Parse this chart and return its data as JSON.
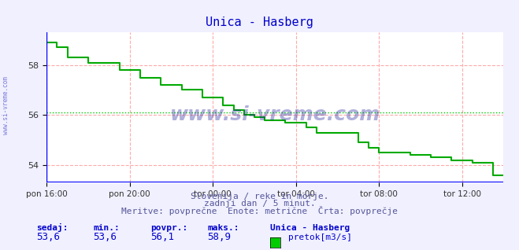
{
  "title": "Unica - Hasberg",
  "title_color": "#0000cc",
  "bg_color": "#f0f0ff",
  "plot_bg_color": "#ffffff",
  "ylabel": "",
  "xlabel": "",
  "ylim": [
    53.3,
    59.3
  ],
  "yticks": [
    54,
    56,
    58
  ],
  "avg_line_y": 56.1,
  "avg_line_color": "#00cc00",
  "grid_color": "#ffaaaa",
  "axis_color": "#0000ff",
  "line_color": "#00aa00",
  "line_width": 1.5,
  "xtick_labels": [
    "pon 16:00",
    "pon 20:00",
    "tor 00:00",
    "tor 04:00",
    "tor 08:00",
    "tor 12:00"
  ],
  "xtick_positions": [
    0,
    4,
    8,
    12,
    16,
    20
  ],
  "total_hours": 22,
  "subtitle1": "Slovenija / reke in morje.",
  "subtitle2": "zadnji dan / 5 minut.",
  "subtitle3": "Meritve: povprečne  Enote: metrične  Črta: povprečje",
  "subtitle_color": "#555599",
  "footer_label1": "sedaj:",
  "footer_label2": "min.:",
  "footer_label3": "povpr.:",
  "footer_label4": "maks.:",
  "footer_val1": "53,6",
  "footer_val2": "53,6",
  "footer_val3": "56,1",
  "footer_val4": "58,9",
  "footer_station": "Unica - Hasberg",
  "footer_legend": "pretok[m3/s]",
  "footer_color": "#0000cc",
  "footer_val_color": "#0000cc",
  "watermark": "www.si-vreme.com",
  "watermark_color": "#1a1a99",
  "sidewatermark": "www.si-vreme.com",
  "sidewatermark_color": "#4444cc",
  "step_x": [
    0,
    0.5,
    0.5,
    1.0,
    1.0,
    2.0,
    2.0,
    3.5,
    3.5,
    4.5,
    4.5,
    5.5,
    5.5,
    6.5,
    6.5,
    7.5,
    7.5,
    8.5,
    8.5,
    9.0,
    9.0,
    9.5,
    9.5,
    10.0,
    10.0,
    10.5,
    10.5,
    11.5,
    11.5,
    12.5,
    12.5,
    13.0,
    13.0,
    15.0,
    15.0,
    15.5,
    15.5,
    16.0,
    16.0,
    17.5,
    17.5,
    18.5,
    18.5,
    19.5,
    19.5,
    20.5,
    20.5,
    21.5,
    21.5,
    22.0
  ],
  "step_y": [
    58.9,
    58.9,
    58.7,
    58.7,
    58.3,
    58.3,
    58.1,
    58.1,
    57.8,
    57.8,
    57.5,
    57.5,
    57.2,
    57.2,
    57.0,
    57.0,
    56.7,
    56.7,
    56.4,
    56.4,
    56.2,
    56.2,
    56.0,
    56.0,
    55.9,
    55.9,
    55.8,
    55.8,
    55.7,
    55.7,
    55.5,
    55.5,
    55.3,
    55.3,
    54.9,
    54.9,
    54.7,
    54.7,
    54.5,
    54.5,
    54.4,
    54.4,
    54.3,
    54.3,
    54.2,
    54.2,
    54.1,
    54.1,
    53.6,
    53.6
  ]
}
